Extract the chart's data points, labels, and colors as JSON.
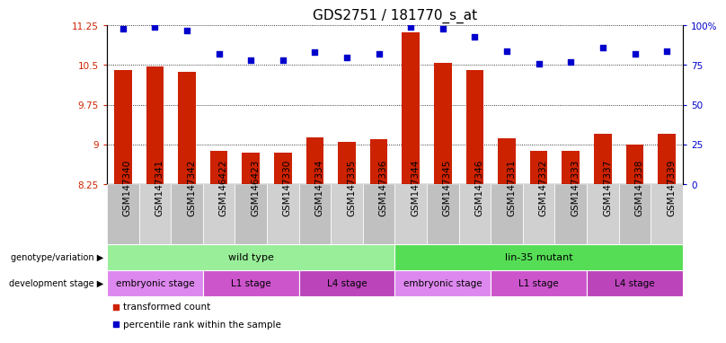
{
  "title": "GDS2751 / 181770_s_at",
  "samples": [
    "GSM147340",
    "GSM147341",
    "GSM147342",
    "GSM146422",
    "GSM146423",
    "GSM147330",
    "GSM147334",
    "GSM147335",
    "GSM147336",
    "GSM147344",
    "GSM147345",
    "GSM147346",
    "GSM147331",
    "GSM147332",
    "GSM147333",
    "GSM147337",
    "GSM147338",
    "GSM147339"
  ],
  "bar_values": [
    10.4,
    10.47,
    10.37,
    8.88,
    8.84,
    8.84,
    9.13,
    9.05,
    9.1,
    11.12,
    10.54,
    10.4,
    9.12,
    8.87,
    8.88,
    9.2,
    9.0,
    9.2
  ],
  "dot_values": [
    98,
    99,
    97,
    82,
    78,
    78,
    83,
    80,
    82,
    99,
    98,
    93,
    84,
    76,
    77,
    86,
    82,
    84
  ],
  "ylim_left": [
    8.25,
    11.25
  ],
  "ylim_right": [
    0,
    100
  ],
  "yticks_left": [
    8.25,
    9.0,
    9.75,
    10.5,
    11.25
  ],
  "ytick_labels_left": [
    "8.25",
    "9",
    "9.75",
    "10.5",
    "11.25"
  ],
  "yticks_right": [
    0,
    25,
    50,
    75,
    100
  ],
  "ytick_labels_right": [
    "0",
    "25",
    "50",
    "75",
    "100%"
  ],
  "bar_color": "#cc2200",
  "dot_color": "#0000cc",
  "genotype_groups": [
    {
      "label": "wild type",
      "start": 0,
      "end": 9,
      "color": "#99ee99"
    },
    {
      "label": "lin-35 mutant",
      "start": 9,
      "end": 18,
      "color": "#55dd55"
    }
  ],
  "stage_groups": [
    {
      "label": "embryonic stage",
      "start": 0,
      "end": 3,
      "color": "#dd88ee"
    },
    {
      "label": "L1 stage",
      "start": 3,
      "end": 6,
      "color": "#cc55cc"
    },
    {
      "label": "L4 stage",
      "start": 6,
      "end": 9,
      "color": "#bb44bb"
    },
    {
      "label": "embryonic stage",
      "start": 9,
      "end": 12,
      "color": "#dd88ee"
    },
    {
      "label": "L1 stage",
      "start": 12,
      "end": 15,
      "color": "#cc55cc"
    },
    {
      "label": "L4 stage",
      "start": 15,
      "end": 18,
      "color": "#bb44bb"
    }
  ],
  "legend_items": [
    {
      "label": "transformed count",
      "color": "#cc2200"
    },
    {
      "label": "percentile rank within the sample",
      "color": "#0000cc"
    }
  ],
  "genotype_label": "genotype/variation",
  "stage_label": "development stage",
  "title_fontsize": 11,
  "tick_fontsize": 7.5,
  "label_fontsize": 8,
  "bar_width": 0.55,
  "xtick_bg_even": "#c0c0c0",
  "xtick_bg_odd": "#d0d0d0"
}
